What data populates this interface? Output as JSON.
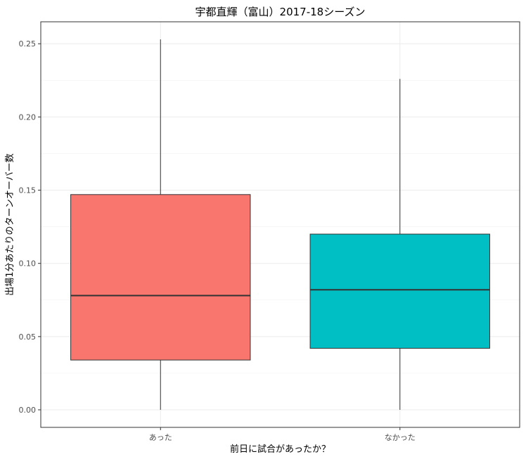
{
  "chart_data": {
    "type": "boxplot",
    "title": "宇都直輝（富山）2017-18シーズン",
    "xlabel": "前日に試合があったか？",
    "ylabel": "出場1分あたりのターンオーバー数",
    "categories": [
      "あった",
      "なかった"
    ],
    "boxes": [
      {
        "category": "あった",
        "min": 0.0,
        "q1": 0.034,
        "median": 0.078,
        "q3": 0.147,
        "max": 0.253,
        "color": "#F8766D"
      },
      {
        "category": "なかった",
        "min": 0.0,
        "q1": 0.042,
        "median": 0.082,
        "q3": 0.12,
        "max": 0.226,
        "color": "#00BFC4"
      }
    ],
    "yticks": [
      0.0,
      0.05,
      0.1,
      0.15,
      0.2,
      0.25
    ],
    "ytick_labels": [
      "0.00",
      "0.05",
      "0.10",
      "0.15",
      "0.20",
      "0.25"
    ],
    "ylim": [
      -0.012,
      0.265
    ],
    "grid": true,
    "legend": "none"
  }
}
